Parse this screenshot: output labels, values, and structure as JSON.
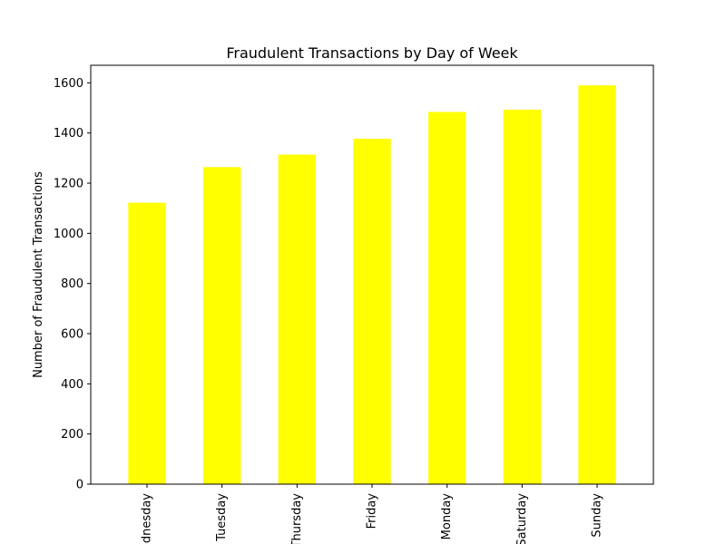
{
  "chart_data": {
    "type": "bar",
    "title": "Fraudulent Transactions by Day of Week",
    "xlabel": "",
    "ylabel": "Number of Fraudulent Transactions",
    "categories": [
      "Wednesday",
      "Tuesday",
      "Thursday",
      "Friday",
      "Monday",
      "Saturday",
      "Sunday"
    ],
    "values": [
      1122,
      1264,
      1314,
      1377,
      1484,
      1493,
      1590
    ],
    "ylim": [
      0,
      1670
    ],
    "yticks": [
      0,
      200,
      400,
      600,
      800,
      1000,
      1200,
      1400,
      1600
    ],
    "bar_color": "#ffff00",
    "grid": false,
    "legend": "none"
  }
}
